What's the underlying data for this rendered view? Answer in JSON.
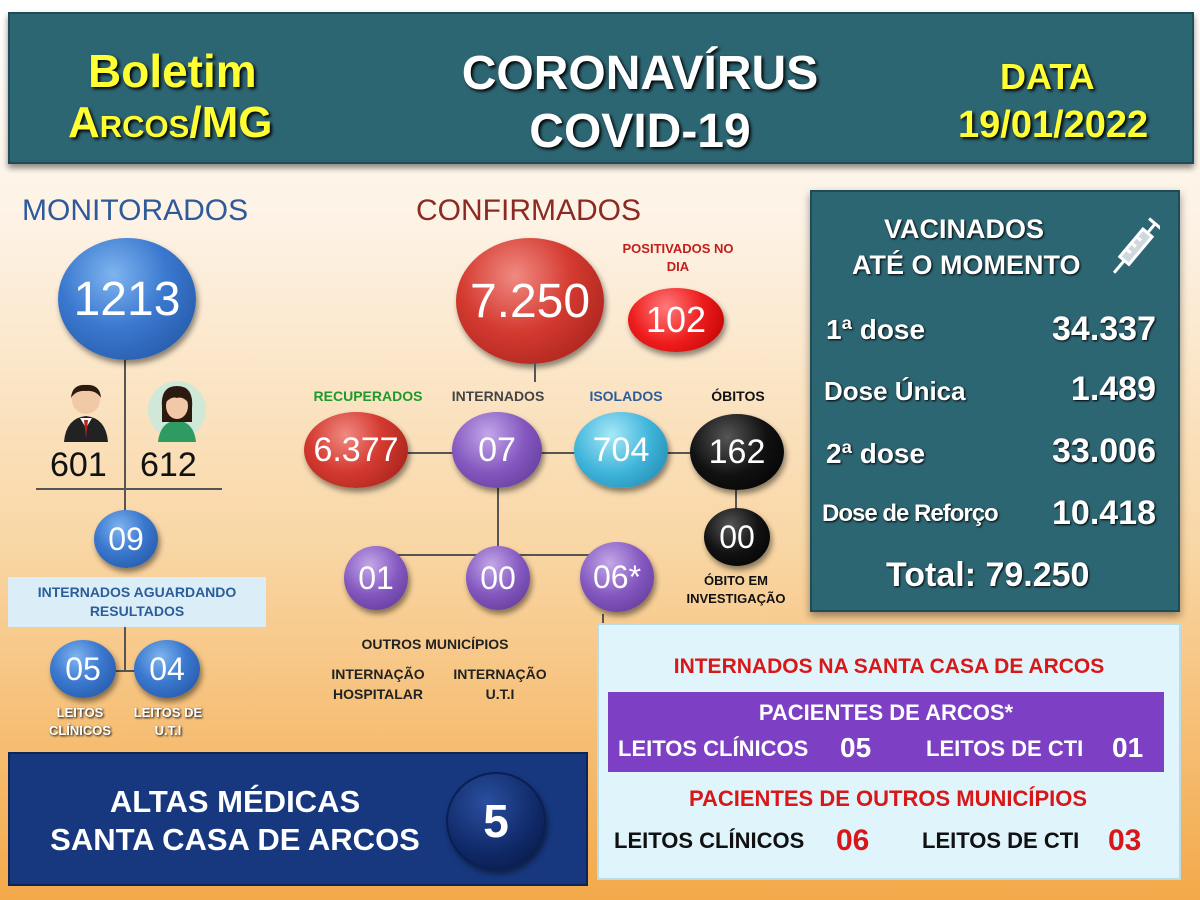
{
  "header": {
    "boletim": "Boletim",
    "city": "Arcos/MG",
    "title1": "CORONAVÍRUS",
    "title2": "COVID-19",
    "data_label": "DATA",
    "date": "19/01/2022"
  },
  "monitorados": {
    "label": "MONITORADOS",
    "total": "1213",
    "male": "601",
    "female": "612",
    "internados": "09",
    "aguardando_label": "INTERNADOS AGUARDANDO RESULTADOS",
    "leitos_clinicos": "05",
    "leitos_uti": "04",
    "leitos_clinicos_label": "LEITOS CLÍNICOS",
    "leitos_uti_label": "LEITOS DE U.T.I"
  },
  "confirmados": {
    "label": "CONFIRMADOS",
    "total": "7.250",
    "positivados_label": "POSITIVADOS NO DIA",
    "positivados": "102",
    "recuperados_label": "RECUPERADOS",
    "recuperados": "6.377",
    "internados_label": "INTERNADOS",
    "internados": "07",
    "isolados_label": "ISOLADOS",
    "isolados": "704",
    "obitos_label": "ÓBITOS",
    "obitos": "162",
    "obito_investigacao": "00",
    "obito_investigacao_label": "ÓBITO EM INVESTIGAÇÃO",
    "sub1": "01",
    "sub2": "00",
    "sub3": "06*",
    "outros_label": "OUTROS MUNICÍPIOS",
    "int_hosp_label": "INTERNAÇÃO HOSPITALAR",
    "int_uti_label": "INTERNAÇÃO U.T.I"
  },
  "vacinados": {
    "title1": "VACINADOS",
    "title2": "ATÉ O MOMENTO",
    "dose1_label": "1ª dose",
    "dose1": "34.337",
    "unica_label": "Dose Única",
    "unica": "1.489",
    "dose2_label": "2ª dose",
    "dose2": "33.006",
    "reforco_label": "Dose de Reforço",
    "reforco": "10.418",
    "total": "Total: 79.250"
  },
  "santa_casa": {
    "title": "INTERNADOS NA SANTA CASA DE ARCOS",
    "arcos_label": "PACIENTES DE ARCOS*",
    "leitos_clinicos_label": "LEITOS CLÍNICOS",
    "arcos_clinicos": "05",
    "leitos_cti_label": "LEITOS DE CTI",
    "arcos_cti": "01",
    "outros_label": "PACIENTES DE OUTROS MUNICÍPIOS",
    "outros_clinicos": "06",
    "outros_cti": "03"
  },
  "altas": {
    "line1": "ALTAS MÉDICAS",
    "line2": "SANTA CASA DE ARCOS",
    "value": "5"
  }
}
